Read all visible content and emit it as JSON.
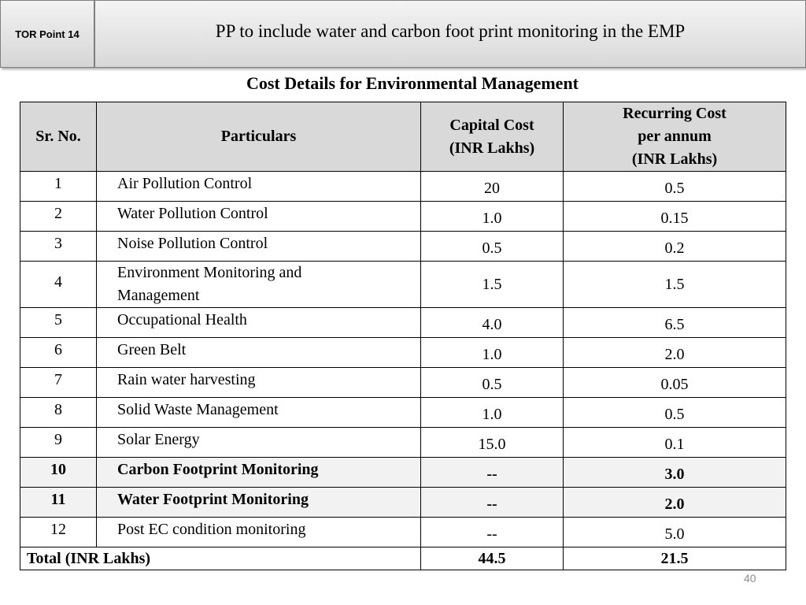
{
  "header": {
    "tor_label": "TOR Point 14",
    "title": "PP to include water and carbon foot print monitoring in the EMP"
  },
  "table": {
    "title": "Cost Details for Environmental Management",
    "columns": {
      "sr": "Sr. No.",
      "particulars": "Particulars",
      "capital": [
        "Capital Cost",
        "(INR Lakhs)"
      ],
      "recurring": [
        "Recurring Cost",
        "per annum",
        "(INR Lakhs)"
      ]
    },
    "rows": [
      {
        "sr": "1",
        "particular": "Air Pollution Control",
        "capital": "20",
        "recurring": "0.5"
      },
      {
        "sr": "2",
        "particular": "Water Pollution Control",
        "capital": "1.0",
        "recurring": "0.15"
      },
      {
        "sr": "3",
        "particular": "Noise Pollution Control",
        "capital": "0.5",
        "recurring": "0.2"
      },
      {
        "sr": "4",
        "particular": [
          "Environment Monitoring and",
          "Management"
        ],
        "capital": "1.5",
        "recurring": "1.5"
      },
      {
        "sr": "5",
        "particular": "Occupational Health",
        "capital": "4.0",
        "recurring": "6.5"
      },
      {
        "sr": "6",
        "particular": "Green Belt",
        "capital": "1.0",
        "recurring": "2.0"
      },
      {
        "sr": "7",
        "particular": "Rain water harvesting",
        "capital": "0.5",
        "recurring": "0.05"
      },
      {
        "sr": "8",
        "particular": "Solid Waste Management",
        "capital": "1.0",
        "recurring": "0.5"
      },
      {
        "sr": "9",
        "particular": "Solar Energy",
        "capital": "15.0",
        "recurring": "0.1"
      },
      {
        "sr": "10",
        "particular": "Carbon Footprint Monitoring",
        "capital": "--",
        "recurring": "3.0"
      },
      {
        "sr": "11",
        "particular": "Water Footprint Monitoring",
        "capital": "--",
        "recurring": "2.0"
      },
      {
        "sr": "12",
        "particular": "Post EC condition monitoring",
        "capital": "--",
        "recurring": "5.0"
      }
    ],
    "total": {
      "label": "Total (INR Lakhs)",
      "capital": "44.5",
      "recurring": "21.5"
    }
  },
  "page_number": "40"
}
